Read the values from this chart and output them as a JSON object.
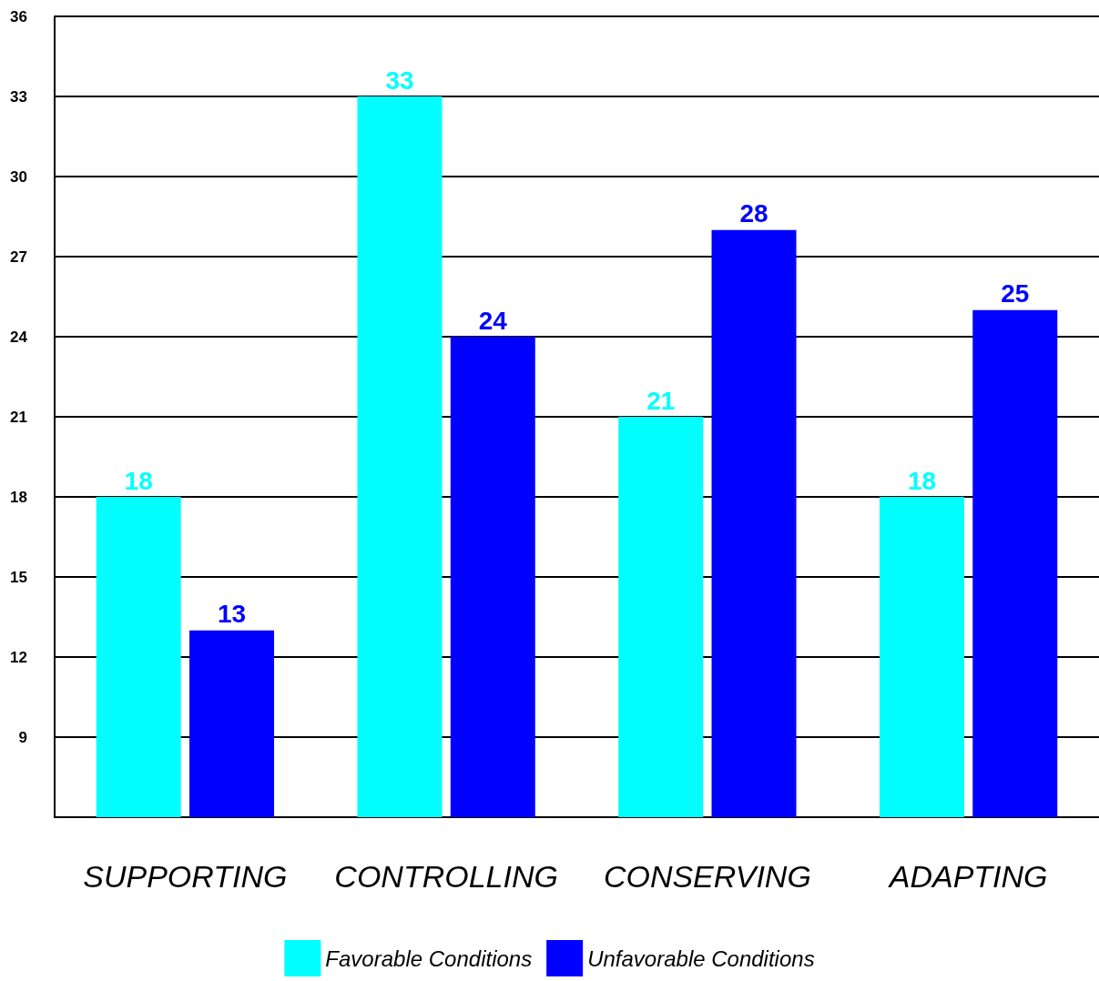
{
  "chart_data": {
    "type": "bar",
    "categories": [
      "SUPPORTING",
      "CONTROLLING",
      "CONSERVING",
      "ADAPTING"
    ],
    "series": [
      {
        "name": "Favorable Conditions",
        "color": "#00ffff",
        "values": [
          18,
          33,
          21,
          18
        ]
      },
      {
        "name": "Unfavorable Conditions",
        "color": "#0000ff",
        "values": [
          13,
          24,
          28,
          25
        ]
      }
    ],
    "ylim": [
      6,
      36
    ],
    "yticks": [
      9,
      12,
      15,
      18,
      21,
      24,
      27,
      30,
      33,
      36
    ],
    "grid": "y",
    "legend": "bottom",
    "data_labels": true
  }
}
